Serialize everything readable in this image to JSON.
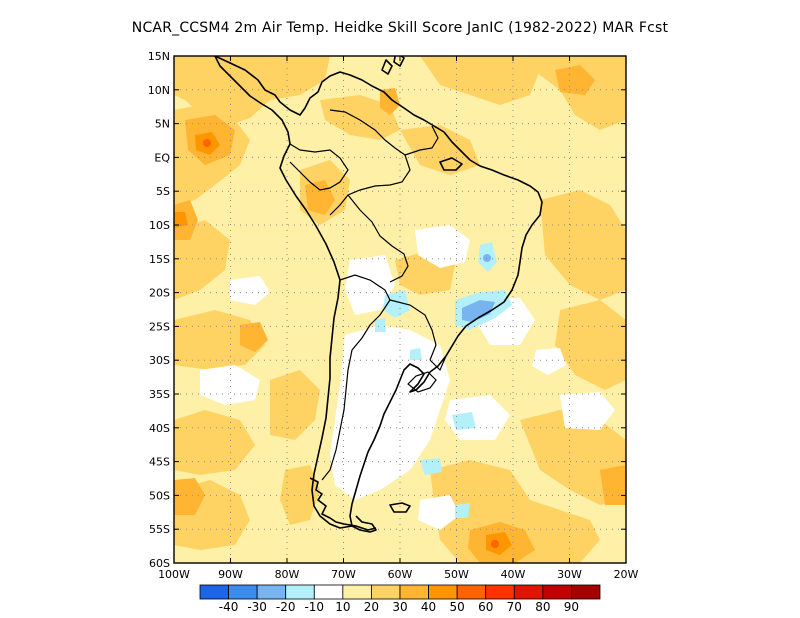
{
  "title": "NCAR_CCSM4  2m Air Temp. Heidke Skill Score JanIC (1982-2022) MAR Fcst",
  "map": {
    "lat_labels": [
      "15N",
      "10N",
      "5N",
      "EQ",
      "5S",
      "10S",
      "15S",
      "20S",
      "25S",
      "30S",
      "35S",
      "40S",
      "45S",
      "50S",
      "55S",
      "60S"
    ],
    "lon_labels": [
      "100W",
      "90W",
      "80W",
      "70W",
      "60W",
      "50W",
      "40W",
      "30W",
      "20W"
    ],
    "lon_range": [
      -100,
      -20
    ],
    "lat_range": [
      -60,
      15
    ],
    "grid": "dotted"
  },
  "colorbar": {
    "colors": [
      "#1e64e6",
      "#3c8cf0",
      "#78b4f0",
      "#b4f0fa",
      "#ffffff",
      "#fff0a8",
      "#ffd264",
      "#ffb432",
      "#ff9600",
      "#ff6400",
      "#ff3200",
      "#e11400",
      "#c00000",
      "#a50000"
    ],
    "labels": [
      "-40",
      "-30",
      "-20",
      "-10",
      "10",
      "20",
      "30",
      "40",
      "50",
      "60",
      "70",
      "80",
      "90"
    ]
  }
}
